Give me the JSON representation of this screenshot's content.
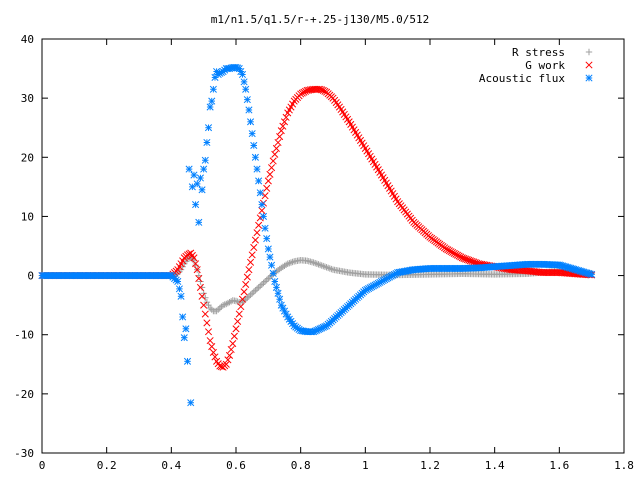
{
  "chart_data": {
    "type": "scatter",
    "title": "m1/n1.5/q1.5/r-+.25-j130/M5.0/512",
    "xlabel": "",
    "ylabel": "",
    "xlim": [
      0,
      1.8
    ],
    "ylim": [
      -30,
      40
    ],
    "x_ticks": [
      "0",
      "0.2",
      "0.4",
      "0.6",
      "0.8",
      "1",
      "1.2",
      "1.4",
      "1.6",
      "1.8"
    ],
    "y_ticks": [
      "-30",
      "-20",
      "-10",
      "0",
      "10",
      "20",
      "30",
      "40"
    ],
    "grid": false,
    "legend_position": "top-right",
    "series": [
      {
        "name": "R stress",
        "marker": "plus",
        "color": "#a0a0a0",
        "x": [
          0.0,
          0.1,
          0.2,
          0.3,
          0.4,
          0.42,
          0.43,
          0.44,
          0.45,
          0.46,
          0.47,
          0.48,
          0.49,
          0.5,
          0.51,
          0.52,
          0.53,
          0.54,
          0.55,
          0.56,
          0.57,
          0.58,
          0.59,
          0.6,
          0.61,
          0.62,
          0.63,
          0.64,
          0.65,
          0.66,
          0.68,
          0.7,
          0.72,
          0.74,
          0.76,
          0.78,
          0.8,
          0.82,
          0.84,
          0.86,
          0.88,
          0.9,
          0.95,
          1.0,
          1.1,
          1.2,
          1.3,
          1.4,
          1.5,
          1.6,
          1.7
        ],
        "y": [
          0,
          0,
          0,
          0,
          0,
          0.3,
          1.0,
          2.0,
          2.8,
          3.0,
          2.5,
          1.0,
          -1.0,
          -3.0,
          -4.5,
          -5.5,
          -6.0,
          -6.0,
          -5.5,
          -5.0,
          -4.8,
          -4.5,
          -4.2,
          -4.3,
          -4.5,
          -4.5,
          -4.0,
          -3.5,
          -3.0,
          -2.5,
          -1.5,
          -0.5,
          0.5,
          1.3,
          2.0,
          2.4,
          2.6,
          2.5,
          2.2,
          1.8,
          1.4,
          1.0,
          0.5,
          0.2,
          0.1,
          0.2,
          0.3,
          0.2,
          0.3,
          0.8,
          0.3
        ]
      },
      {
        "name": "G work",
        "marker": "cross",
        "color": "#ff0000",
        "x": [
          0.0,
          0.1,
          0.2,
          0.3,
          0.4,
          0.42,
          0.43,
          0.44,
          0.45,
          0.46,
          0.47,
          0.48,
          0.49,
          0.5,
          0.51,
          0.52,
          0.53,
          0.54,
          0.55,
          0.56,
          0.57,
          0.58,
          0.59,
          0.6,
          0.61,
          0.62,
          0.63,
          0.64,
          0.65,
          0.66,
          0.67,
          0.68,
          0.69,
          0.7,
          0.72,
          0.74,
          0.76,
          0.78,
          0.8,
          0.82,
          0.84,
          0.86,
          0.87,
          0.88,
          0.9,
          0.92,
          0.95,
          1.0,
          1.05,
          1.1,
          1.15,
          1.2,
          1.25,
          1.3,
          1.35,
          1.4,
          1.45,
          1.5,
          1.55,
          1.6,
          1.65,
          1.7
        ],
        "y": [
          0,
          0,
          0,
          0,
          0,
          1.0,
          2.0,
          3.0,
          3.5,
          3.8,
          3.0,
          1.0,
          -2.0,
          -5.0,
          -8.0,
          -11.0,
          -13.0,
          -14.5,
          -15.3,
          -15.5,
          -15.0,
          -13.5,
          -11.5,
          -9.0,
          -6.5,
          -4.0,
          -1.5,
          1.0,
          3.5,
          6.0,
          8.5,
          11.0,
          13.5,
          16.0,
          20.5,
          24.5,
          27.5,
          29.5,
          30.7,
          31.3,
          31.5,
          31.5,
          31.3,
          31.0,
          30.0,
          28.5,
          26.0,
          21.5,
          17.0,
          12.5,
          9.0,
          6.5,
          4.5,
          3.0,
          2.0,
          1.5,
          1.0,
          0.8,
          0.5,
          0.5,
          0.3,
          0.1
        ]
      },
      {
        "name": "Acoustic flux",
        "marker": "star",
        "color": "#0080ff",
        "x": [
          0.0,
          0.1,
          0.2,
          0.3,
          0.4,
          0.42,
          0.43,
          0.44,
          0.445,
          0.45,
          0.455,
          0.46,
          0.465,
          0.47,
          0.475,
          0.48,
          0.485,
          0.49,
          0.495,
          0.5,
          0.505,
          0.51,
          0.515,
          0.52,
          0.525,
          0.53,
          0.535,
          0.54,
          0.545,
          0.55,
          0.56,
          0.57,
          0.58,
          0.59,
          0.6,
          0.61,
          0.62,
          0.63,
          0.64,
          0.65,
          0.66,
          0.67,
          0.68,
          0.69,
          0.7,
          0.72,
          0.74,
          0.76,
          0.78,
          0.8,
          0.82,
          0.84,
          0.86,
          0.88,
          0.9,
          0.92,
          0.94,
          0.96,
          0.98,
          1.0,
          1.05,
          1.1,
          1.15,
          1.2,
          1.25,
          1.3,
          1.35,
          1.4,
          1.45,
          1.5,
          1.55,
          1.6,
          1.65,
          1.7
        ],
        "y": [
          0,
          0,
          0,
          0,
          0,
          -1.0,
          -3.5,
          -10.5,
          -9.0,
          -14.5,
          18.0,
          -21.5,
          15.0,
          17.0,
          12.0,
          15.5,
          9.0,
          16.5,
          14.5,
          18.0,
          19.5,
          22.5,
          25.0,
          28.5,
          29.5,
          31.5,
          33.5,
          34.5,
          34.0,
          34.2,
          34.5,
          35.0,
          35.0,
          35.2,
          35.2,
          35.0,
          34.0,
          31.5,
          28.0,
          24.0,
          20.0,
          16.0,
          12.0,
          8.0,
          4.5,
          -1.0,
          -5.0,
          -7.0,
          -8.5,
          -9.3,
          -9.5,
          -9.5,
          -9.0,
          -8.5,
          -7.5,
          -6.5,
          -5.5,
          -4.5,
          -3.5,
          -2.5,
          -1.0,
          0.5,
          1.0,
          1.2,
          1.2,
          1.2,
          1.3,
          1.5,
          1.7,
          1.9,
          1.9,
          1.8,
          1.0,
          0.2
        ]
      }
    ]
  }
}
